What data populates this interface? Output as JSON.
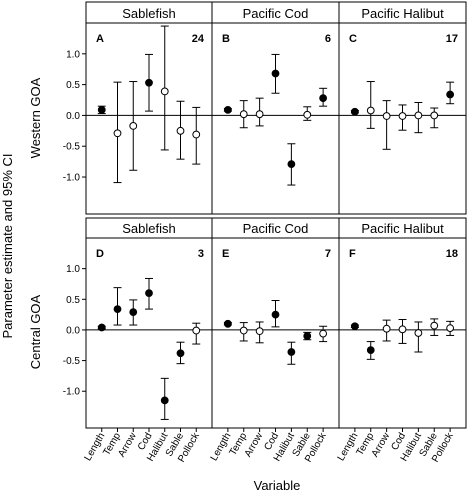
{
  "chart_data": {
    "type": "scatter",
    "ylabel": "Parameter estimate and 95% CI",
    "xlabel": "Variable",
    "row_labels": [
      "Western GOA",
      "Central GOA"
    ],
    "column_labels": [
      "Sablefish",
      "Pacific Cod",
      "Pacific Halibut"
    ],
    "categories": [
      "Length",
      "Temp",
      "Arrow",
      "Cod",
      "Halibut",
      "Sable",
      "Pollock"
    ],
    "ylim": [
      -1.6,
      1.5
    ],
    "yticks": [
      "-1.0",
      "-0.5",
      "0.0",
      "0.5",
      "1.0"
    ],
    "panels": [
      {
        "row": 0,
        "col": 0,
        "letter": "A",
        "n": "24",
        "x_offset": 0,
        "estimates": [
          0.09,
          -0.29,
          -0.17,
          0.53,
          0.39,
          -0.25,
          -0.31
        ],
        "lower": [
          0.03,
          -1.09,
          -0.89,
          0.07,
          -0.56,
          -0.71,
          -0.79
        ],
        "upper": [
          0.15,
          0.54,
          0.55,
          0.99,
          1.45,
          0.23,
          0.13
        ],
        "significant": [
          true,
          false,
          false,
          true,
          false,
          false,
          false
        ]
      },
      {
        "row": 0,
        "col": 1,
        "letter": "B",
        "n": "6",
        "x_offset": 0,
        "estimates": [
          0.09,
          0.02,
          0.02,
          0.68,
          -0.79,
          0.01,
          0.28
        ],
        "lower": [
          0.07,
          -0.2,
          -0.17,
          0.36,
          -1.13,
          -0.08,
          0.15
        ],
        "upper": [
          0.11,
          0.24,
          0.28,
          0.99,
          -0.46,
          0.14,
          0.44
        ],
        "significant": [
          true,
          false,
          false,
          true,
          true,
          false,
          true
        ]
      },
      {
        "row": 0,
        "col": 2,
        "letter": "C",
        "n": "17",
        "x_offset": 0,
        "estimates": [
          0.06,
          0.08,
          -0.01,
          -0.01,
          0.0,
          0.0,
          0.34
        ],
        "lower": [
          0.04,
          -0.21,
          -0.55,
          -0.24,
          -0.28,
          -0.2,
          0.19
        ],
        "upper": [
          0.08,
          0.55,
          0.24,
          0.17,
          0.21,
          0.12,
          0.54
        ],
        "significant": [
          true,
          false,
          false,
          false,
          false,
          false,
          true
        ]
      },
      {
        "row": 1,
        "col": 0,
        "letter": "D",
        "n": "3",
        "x_offset": 0,
        "estimates": [
          0.04,
          0.34,
          0.29,
          0.6,
          -1.15,
          -0.38,
          -0.01
        ],
        "lower": [
          0.02,
          0.08,
          0.08,
          0.34,
          -1.46,
          -0.55,
          -0.23
        ],
        "upper": [
          0.06,
          0.69,
          0.49,
          0.84,
          -0.79,
          -0.2,
          0.11
        ],
        "significant": [
          true,
          true,
          true,
          true,
          true,
          true,
          false
        ]
      },
      {
        "row": 1,
        "col": 1,
        "letter": "E",
        "n": "7",
        "x_offset": 0,
        "estimates": [
          0.1,
          -0.01,
          -0.02,
          0.25,
          -0.36,
          -0.1,
          -0.06
        ],
        "lower": [
          0.08,
          -0.18,
          -0.21,
          0.05,
          -0.56,
          -0.16,
          -0.19
        ],
        "upper": [
          0.12,
          0.12,
          0.13,
          0.48,
          -0.2,
          -0.04,
          0.06
        ],
        "significant": [
          true,
          false,
          false,
          true,
          true,
          true,
          false
        ]
      },
      {
        "row": 1,
        "col": 2,
        "letter": "F",
        "n": "18",
        "x_offset": 0,
        "estimates": [
          0.06,
          -0.33,
          0.02,
          0.01,
          -0.05,
          0.07,
          0.03
        ],
        "lower": [
          0.04,
          -0.48,
          -0.18,
          -0.22,
          -0.36,
          -0.09,
          -0.09
        ],
        "upper": [
          0.08,
          -0.19,
          0.16,
          0.17,
          0.13,
          0.18,
          0.14
        ],
        "significant": [
          true,
          true,
          false,
          false,
          false,
          false,
          false
        ]
      }
    ]
  }
}
